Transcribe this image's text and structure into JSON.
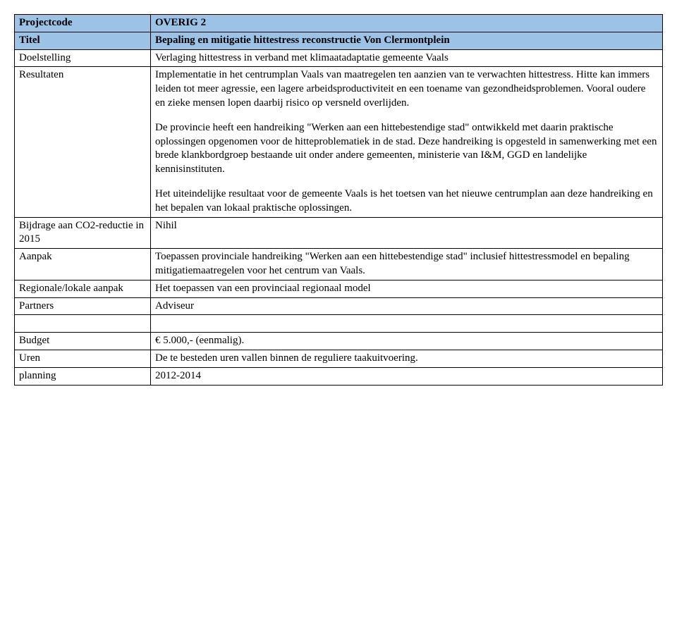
{
  "rows": {
    "projectcode": {
      "label": "Projectcode",
      "value": "OVERIG 2"
    },
    "titel": {
      "label": "Titel",
      "value": "Bepaling en mitigatie hittestress reconstructie Von Clermontplein"
    },
    "doelstelling": {
      "label": "Doelstelling",
      "value": "Verlaging hittestress in verband met klimaatadaptatie gemeente Vaals"
    },
    "resultaten": {
      "label": "Resultaten",
      "p1": "Implementatie in het centrumplan Vaals van maatregelen ten aanzien van te verwachten hittestress. Hitte kan immers leiden tot meer agressie, een lagere arbeidsproductiviteit en een toename van gezondheidsproblemen. Vooral oudere en zieke mensen lopen daarbij risico op versneld overlijden.",
      "p2": "De provincie heeft een handreiking \"Werken aan een hittebestendige stad\" ontwikkeld met daarin praktische oplossingen opgenomen voor de hitteproblematiek in de stad. Deze handreiking is opgesteld in samenwerking met een brede klankbordgroep bestaande uit onder andere gemeenten, ministerie van I&M, GGD en landelijke kennisinstituten.",
      "p3": "Het uiteindelijke resultaat voor de gemeente Vaals is het toetsen van het nieuwe centrumplan aan deze handreiking en het bepalen van lokaal praktische oplossingen."
    },
    "co2": {
      "label": "Bijdrage aan CO2-reductie in 2015",
      "value": "Nihil"
    },
    "aanpak": {
      "label": "Aanpak",
      "value": "Toepassen provinciale handreiking \"Werken aan een hittebestendige stad\"   inclusief hittestressmodel en bepaling mitigatiemaatregelen voor het centrum van Vaals."
    },
    "regionale": {
      "label": "Regionale/lokale aanpak",
      "value": "Het toepassen van een provinciaal regionaal model"
    },
    "partners": {
      "label": "Partners",
      "value": "Adviseur"
    },
    "budget": {
      "label": "Budget",
      "value": "€ 5.000,- (eenmalig)."
    },
    "uren": {
      "label": "Uren",
      "value": "De te besteden uren vallen binnen de reguliere taakuitvoering."
    },
    "planning": {
      "label": "planning",
      "value": "2012-2014"
    }
  },
  "colors": {
    "header_bg": "#9cc2e5",
    "border": "#000000",
    "text": "#000000",
    "background": "#ffffff"
  }
}
